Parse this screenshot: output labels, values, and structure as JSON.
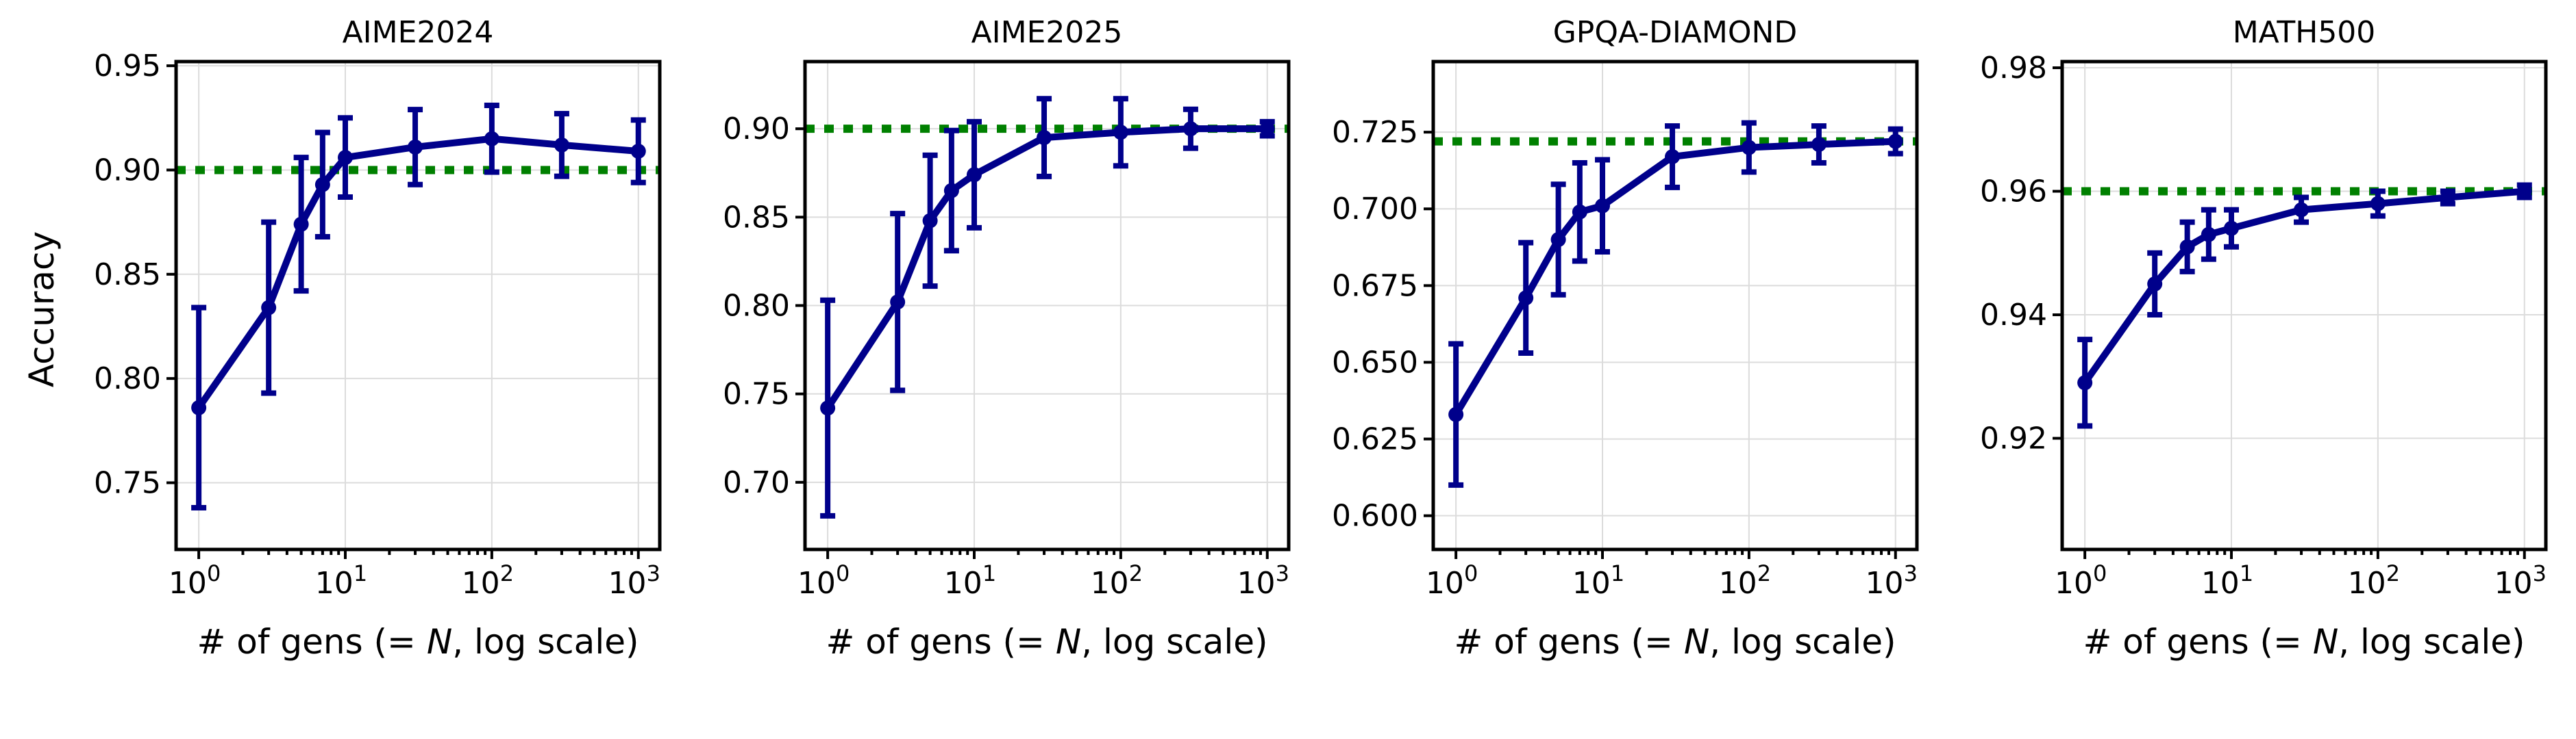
{
  "colors": {
    "series": "#00008b",
    "reference": "#008000",
    "grid": "#dcdcdc"
  },
  "x_tick_labels": [
    {
      "value": 1,
      "base": "10",
      "exp": "0"
    },
    {
      "value": 10,
      "base": "10",
      "exp": "1"
    },
    {
      "value": 100,
      "base": "10",
      "exp": "2"
    },
    {
      "value": 1000,
      "base": "10",
      "exp": "3"
    }
  ],
  "chart_data": [
    {
      "type": "line",
      "title": "AIME2024",
      "xlabel": "# of gens (= N, log scale)",
      "xlabel_parts": [
        "# of gens (= ",
        "N",
        ", log scale)"
      ],
      "ylabel": "Accuracy",
      "xscale": "log",
      "xlim": [
        0.7,
        1400
      ],
      "ylim": [
        0.718,
        0.952
      ],
      "yticks": [
        0.75,
        0.8,
        0.85,
        0.9,
        0.95
      ],
      "ytick_labels": [
        "0.75",
        "0.80",
        "0.85",
        "0.90",
        "0.95"
      ],
      "grid": true,
      "x": [
        1,
        3,
        5,
        7,
        10,
        30,
        100,
        300,
        1000
      ],
      "y": [
        0.786,
        0.834,
        0.874,
        0.893,
        0.906,
        0.911,
        0.915,
        0.912,
        0.909
      ],
      "yerr": [
        0.048,
        0.041,
        0.032,
        0.025,
        0.019,
        0.018,
        0.016,
        0.015,
        0.015
      ],
      "reference": 0.9
    },
    {
      "type": "line",
      "title": "AIME2025",
      "xlabel": "# of gens (= N, log scale)",
      "xlabel_parts": [
        "# of gens (= ",
        "N",
        ", log scale)"
      ],
      "ylabel": "",
      "xscale": "log",
      "xlim": [
        0.7,
        1400
      ],
      "ylim": [
        0.662,
        0.938
      ],
      "yticks": [
        0.7,
        0.75,
        0.8,
        0.85,
        0.9
      ],
      "ytick_labels": [
        "0.70",
        "0.75",
        "0.80",
        "0.85",
        "0.90"
      ],
      "grid": true,
      "x": [
        1,
        3,
        5,
        7,
        10,
        30,
        100,
        300,
        1000
      ],
      "y": [
        0.742,
        0.802,
        0.848,
        0.865,
        0.874,
        0.895,
        0.898,
        0.9,
        0.9
      ],
      "yerr": [
        0.061,
        0.05,
        0.037,
        0.034,
        0.03,
        0.022,
        0.019,
        0.011,
        0.004
      ],
      "reference": 0.9
    },
    {
      "type": "line",
      "title": "GPQA-DIAMOND",
      "xlabel": "# of gens (= N, log scale)",
      "xlabel_parts": [
        "# of gens (= ",
        "N",
        ", log scale)"
      ],
      "ylabel": "",
      "xscale": "log",
      "xlim": [
        0.7,
        1400
      ],
      "ylim": [
        0.589,
        0.748
      ],
      "yticks": [
        0.6,
        0.625,
        0.65,
        0.675,
        0.7,
        0.725
      ],
      "ytick_labels": [
        "0.600",
        "0.625",
        "0.650",
        "0.675",
        "0.700",
        "0.725"
      ],
      "grid": true,
      "x": [
        1,
        3,
        5,
        7,
        10,
        30,
        100,
        300,
        1000
      ],
      "y": [
        0.633,
        0.671,
        0.69,
        0.699,
        0.701,
        0.717,
        0.72,
        0.721,
        0.722
      ],
      "yerr": [
        0.023,
        0.018,
        0.018,
        0.016,
        0.015,
        0.01,
        0.008,
        0.006,
        0.004
      ],
      "reference": 0.722
    },
    {
      "type": "line",
      "title": "MATH500",
      "xlabel": "# of gens (= N, log scale)",
      "xlabel_parts": [
        "# of gens (= ",
        "N",
        ", log scale)"
      ],
      "ylabel": "",
      "xscale": "log",
      "xlim": [
        0.7,
        1400
      ],
      "ylim": [
        0.902,
        0.981
      ],
      "yticks": [
        0.92,
        0.94,
        0.96,
        0.98
      ],
      "ytick_labels": [
        "0.92",
        "0.94",
        "0.96",
        "0.98"
      ],
      "grid": true,
      "x": [
        1,
        3,
        5,
        7,
        10,
        30,
        100,
        300,
        1000
      ],
      "y": [
        0.929,
        0.945,
        0.951,
        0.953,
        0.954,
        0.957,
        0.958,
        0.959,
        0.96
      ],
      "yerr": [
        0.007,
        0.005,
        0.004,
        0.004,
        0.003,
        0.002,
        0.002,
        0.001,
        0.001
      ],
      "reference": 0.96
    }
  ]
}
